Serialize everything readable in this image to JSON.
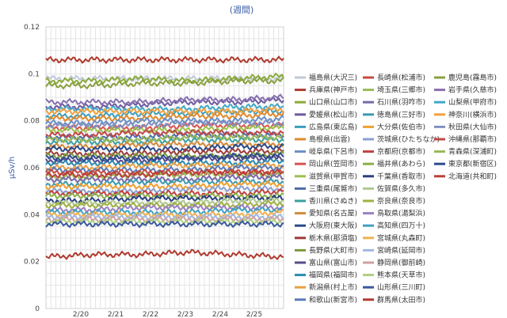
{
  "chart_data": {
    "type": "line",
    "title": "(週間)",
    "ylabel": "μSv/h",
    "xlabel": "",
    "ylim": [
      0,
      0.12
    ],
    "yticks": [
      "0",
      "0.02",
      "0.04",
      "0.06",
      "0.08",
      "0.1",
      "0.12"
    ],
    "categories": [
      "2/20",
      "2/21",
      "2/22",
      "2/23",
      "2/24",
      "2/25"
    ],
    "grid": true,
    "legend_position": "right",
    "series": [
      {
        "name": "福島県(大沢三)",
        "color": "#c0c7d6",
        "values": [
          0.098,
          0.098,
          0.098,
          0.098,
          0.098,
          0.098
        ]
      },
      {
        "name": "兵庫県(神戸市)",
        "color": "#b03a2e",
        "values": [
          0.106,
          0.106,
          0.106,
          0.106,
          0.106,
          0.106
        ]
      },
      {
        "name": "山口県(山口市)",
        "color": "#8bab3a",
        "values": [
          0.097,
          0.097,
          0.098,
          0.097,
          0.098,
          0.099
        ]
      },
      {
        "name": "愛媛県(松山市)",
        "color": "#6e5a9e",
        "values": [
          0.086,
          0.086,
          0.087,
          0.088,
          0.088,
          0.089
        ]
      },
      {
        "name": "広島県(東広島)",
        "color": "#3a9fbf",
        "values": [
          0.082,
          0.082,
          0.083,
          0.083,
          0.084,
          0.084
        ]
      },
      {
        "name": "島根県(出雲)",
        "color": "#e08a2c",
        "values": [
          0.081,
          0.081,
          0.081,
          0.082,
          0.082,
          0.083
        ]
      },
      {
        "name": "岐阜県(下呂市)",
        "color": "#6b8fc6",
        "values": [
          0.079,
          0.079,
          0.08,
          0.08,
          0.08,
          0.081
        ]
      },
      {
        "name": "岡山県(笠岡市)",
        "color": "#d9534f",
        "values": [
          0.077,
          0.077,
          0.077,
          0.078,
          0.078,
          0.078
        ]
      },
      {
        "name": "滋賀県(甲賀市)",
        "color": "#9cc24a",
        "values": [
          0.076,
          0.076,
          0.076,
          0.076,
          0.077,
          0.077
        ]
      },
      {
        "name": "三重県(尾鷲市)",
        "color": "#4e6aa8",
        "values": [
          0.073,
          0.073,
          0.073,
          0.074,
          0.074,
          0.074
        ]
      },
      {
        "name": "香川県(さぬき)",
        "color": "#3aa0a0",
        "values": [
          0.071,
          0.071,
          0.071,
          0.072,
          0.072,
          0.072
        ]
      },
      {
        "name": "愛知県(名古屋)",
        "color": "#d48a3a",
        "values": [
          0.069,
          0.069,
          0.07,
          0.07,
          0.07,
          0.07
        ]
      },
      {
        "name": "大阪府(東大阪)",
        "color": "#2a4a8a",
        "values": [
          0.068,
          0.068,
          0.068,
          0.068,
          0.069,
          0.069
        ]
      },
      {
        "name": "栃木県(那須塩)",
        "color": "#a03a3a",
        "values": [
          0.066,
          0.066,
          0.066,
          0.067,
          0.067,
          0.067
        ]
      },
      {
        "name": "長野県(大町市)",
        "color": "#7a9a3a",
        "values": [
          0.065,
          0.065,
          0.065,
          0.065,
          0.065,
          0.066
        ]
      },
      {
        "name": "富山県(富山市)",
        "color": "#5a4a8a",
        "values": [
          0.063,
          0.063,
          0.063,
          0.064,
          0.064,
          0.064
        ]
      },
      {
        "name": "福岡県(福岡市)",
        "color": "#2a8ab0",
        "values": [
          0.062,
          0.062,
          0.062,
          0.062,
          0.062,
          0.063
        ]
      },
      {
        "name": "新潟県(村上市)",
        "color": "#e8a040",
        "values": [
          0.06,
          0.06,
          0.061,
          0.061,
          0.061,
          0.061
        ]
      },
      {
        "name": "和歌山(新宮市)",
        "color": "#5a7ab8",
        "values": [
          0.059,
          0.059,
          0.059,
          0.059,
          0.06,
          0.06
        ]
      },
      {
        "name": "長崎県(松浦市)",
        "color": "#c84a40",
        "values": [
          0.058,
          0.058,
          0.058,
          0.058,
          0.058,
          0.058
        ]
      },
      {
        "name": "埼玉県(三郷市)",
        "color": "#9aba5a",
        "values": [
          0.056,
          0.056,
          0.057,
          0.057,
          0.057,
          0.057
        ]
      },
      {
        "name": "石川県(羽咋市)",
        "color": "#7a6aaa",
        "values": [
          0.055,
          0.055,
          0.055,
          0.055,
          0.056,
          0.056
        ]
      },
      {
        "name": "徳島県(三好市)",
        "color": "#3a9ab0",
        "values": [
          0.053,
          0.053,
          0.054,
          0.054,
          0.054,
          0.054
        ]
      },
      {
        "name": "大分県(佐伯市)",
        "color": "#f0a030",
        "values": [
          0.052,
          0.052,
          0.052,
          0.052,
          0.053,
          0.053
        ]
      },
      {
        "name": "茨城県(ひたちなか)",
        "color": "#8aa0d0",
        "values": [
          0.05,
          0.05,
          0.05,
          0.051,
          0.051,
          0.051
        ]
      },
      {
        "name": "京都府(京都市)",
        "color": "#c04040",
        "values": [
          0.049,
          0.049,
          0.049,
          0.049,
          0.049,
          0.05
        ]
      },
      {
        "name": "福井県(あわら)",
        "color": "#8ab04a",
        "values": [
          0.048,
          0.048,
          0.048,
          0.048,
          0.048,
          0.048
        ]
      },
      {
        "name": "千葉県(香取市)",
        "color": "#2a4080",
        "values": [
          0.046,
          0.046,
          0.047,
          0.047,
          0.047,
          0.047
        ]
      },
      {
        "name": "佐賀県(多久市)",
        "color": "#b0c890",
        "values": [
          0.045,
          0.045,
          0.045,
          0.045,
          0.046,
          0.046
        ]
      },
      {
        "name": "奈良県(奈良市)",
        "color": "#a0b040",
        "values": [
          0.044,
          0.044,
          0.044,
          0.044,
          0.044,
          0.045
        ]
      },
      {
        "name": "鳥取県(湯梨浜)",
        "color": "#9a80c0",
        "values": [
          0.042,
          0.042,
          0.043,
          0.043,
          0.043,
          0.043
        ]
      },
      {
        "name": "高知県(四万十)",
        "color": "#40a0c0",
        "values": [
          0.041,
          0.041,
          0.041,
          0.041,
          0.042,
          0.042
        ]
      },
      {
        "name": "宮城県(丸森町)",
        "color": "#f0b050",
        "values": [
          0.04,
          0.04,
          0.04,
          0.04,
          0.04,
          0.041
        ]
      },
      {
        "name": "宮崎県(延岡市)",
        "color": "#a0b8e0",
        "values": [
          0.039,
          0.039,
          0.039,
          0.039,
          0.039,
          0.039
        ]
      },
      {
        "name": "静岡県(御前崎)",
        "color": "#d0a0a0",
        "values": [
          0.038,
          0.038,
          0.038,
          0.038,
          0.038,
          0.038
        ]
      },
      {
        "name": "熊本県(天草市)",
        "color": "#b0d080",
        "values": [
          0.037,
          0.037,
          0.037,
          0.037,
          0.037,
          0.037
        ]
      },
      {
        "name": "山形県(三川町)",
        "color": "#3a58a0",
        "values": [
          0.036,
          0.036,
          0.036,
          0.036,
          0.036,
          0.036
        ]
      },
      {
        "name": "群馬県(太田市)",
        "color": "#b03a30",
        "values": [
          0.022,
          0.023,
          0.023,
          0.024,
          0.023,
          0.022
        ]
      },
      {
        "name": "鹿児島(霧島市)",
        "color": "#8aa040",
        "values": [
          0.095,
          0.095,
          0.096,
          0.096,
          0.097,
          0.097
        ]
      },
      {
        "name": "岩手県(久慈市)",
        "color": "#8870b0",
        "values": [
          0.088,
          0.088,
          0.088,
          0.089,
          0.089,
          0.09
        ]
      },
      {
        "name": "山梨県(甲府市)",
        "color": "#40a8c8",
        "values": [
          0.085,
          0.085,
          0.085,
          0.085,
          0.086,
          0.086
        ]
      },
      {
        "name": "神奈川(横浜市)",
        "color": "#f0a040",
        "values": [
          0.084,
          0.084,
          0.084,
          0.084,
          0.084,
          0.085
        ]
      },
      {
        "name": "秋田県(大仙市)",
        "color": "#8090c0",
        "values": [
          0.078,
          0.078,
          0.078,
          0.079,
          0.079,
          0.079
        ]
      },
      {
        "name": "沖縄県(那覇市)",
        "color": "#c04848",
        "values": [
          0.074,
          0.074,
          0.075,
          0.075,
          0.075,
          0.075
        ]
      },
      {
        "name": "青森県(深浦町)",
        "color": "#98b858",
        "values": [
          0.072,
          0.072,
          0.072,
          0.073,
          0.073,
          0.073
        ]
      },
      {
        "name": "東京都(新宿区)",
        "color": "#304a90",
        "values": [
          0.064,
          0.064,
          0.064,
          0.064,
          0.065,
          0.065
        ]
      },
      {
        "name": "北海道(共和町)",
        "color": "#b84038",
        "values": [
          0.057,
          0.057,
          0.057,
          0.058,
          0.058,
          0.058
        ]
      }
    ]
  }
}
